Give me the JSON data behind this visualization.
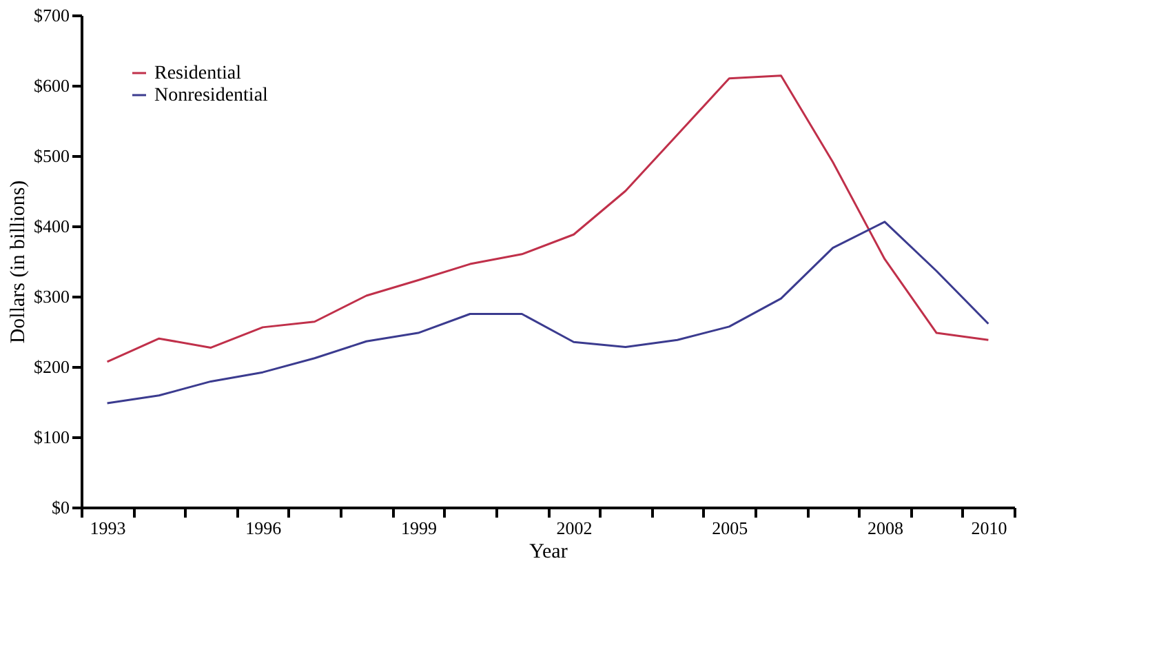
{
  "chart_data": {
    "type": "line",
    "xlabel": "Year",
    "ylabel": "Dollars (in billions)",
    "x": [
      1993,
      1994,
      1995,
      1996,
      1997,
      1998,
      1999,
      2000,
      2001,
      2002,
      2003,
      2004,
      2005,
      2006,
      2007,
      2008,
      2009,
      2010
    ],
    "series": [
      {
        "name": "Residential",
        "color": "#c0304a",
        "values": [
          207,
          240,
          227,
          256,
          264,
          301,
          323,
          346,
          360,
          388,
          450,
          530,
          610,
          614,
          491,
          353,
          248,
          238
        ]
      },
      {
        "name": "Nonresidential",
        "color": "#3b3b8f",
        "values": [
          148,
          159,
          179,
          192,
          212,
          236,
          248,
          275,
          275,
          235,
          228,
          238,
          257,
          297,
          369,
          406,
          336,
          261
        ]
      }
    ],
    "xlim": [
      1992.5,
      2010.5
    ],
    "xticks": [
      {
        "value": 1992.5,
        "label": null
      },
      {
        "value": 1993.5,
        "label": null
      },
      {
        "value": 1994.5,
        "label": null
      },
      {
        "value": 1995.5,
        "label": null
      },
      {
        "value": 1996.5,
        "label": null
      },
      {
        "value": 1997.5,
        "label": null
      },
      {
        "value": 1998.5,
        "label": null
      },
      {
        "value": 1999.5,
        "label": null
      },
      {
        "value": 2000.5,
        "label": null
      },
      {
        "value": 2001.5,
        "label": null
      },
      {
        "value": 2002.5,
        "label": null
      },
      {
        "value": 2003.5,
        "label": null
      },
      {
        "value": 2004.5,
        "label": null
      },
      {
        "value": 2005.5,
        "label": null
      },
      {
        "value": 2006.5,
        "label": null
      },
      {
        "value": 2007.5,
        "label": null
      },
      {
        "value": 2008.5,
        "label": null
      },
      {
        "value": 2009.5,
        "label": null
      },
      {
        "value": 2010.5,
        "label": null
      },
      1993,
      1996,
      1999,
      2002,
      2005,
      2008,
      2010
    ],
    "ylim": [
      0,
      700
    ],
    "yticks": [
      {
        "value": 0,
        "label": "$0"
      },
      {
        "value": 100,
        "label": "$100"
      },
      {
        "value": 200,
        "label": "$200"
      },
      {
        "value": 300,
        "label": "$300"
      },
      {
        "value": 400,
        "label": "$400"
      },
      {
        "value": 500,
        "label": "$500"
      },
      {
        "value": 600,
        "label": "$600"
      },
      {
        "value": 700,
        "label": "$700"
      }
    ],
    "grid": false,
    "legend": "top left",
    "marker": "none",
    "line_style": "solid"
  }
}
